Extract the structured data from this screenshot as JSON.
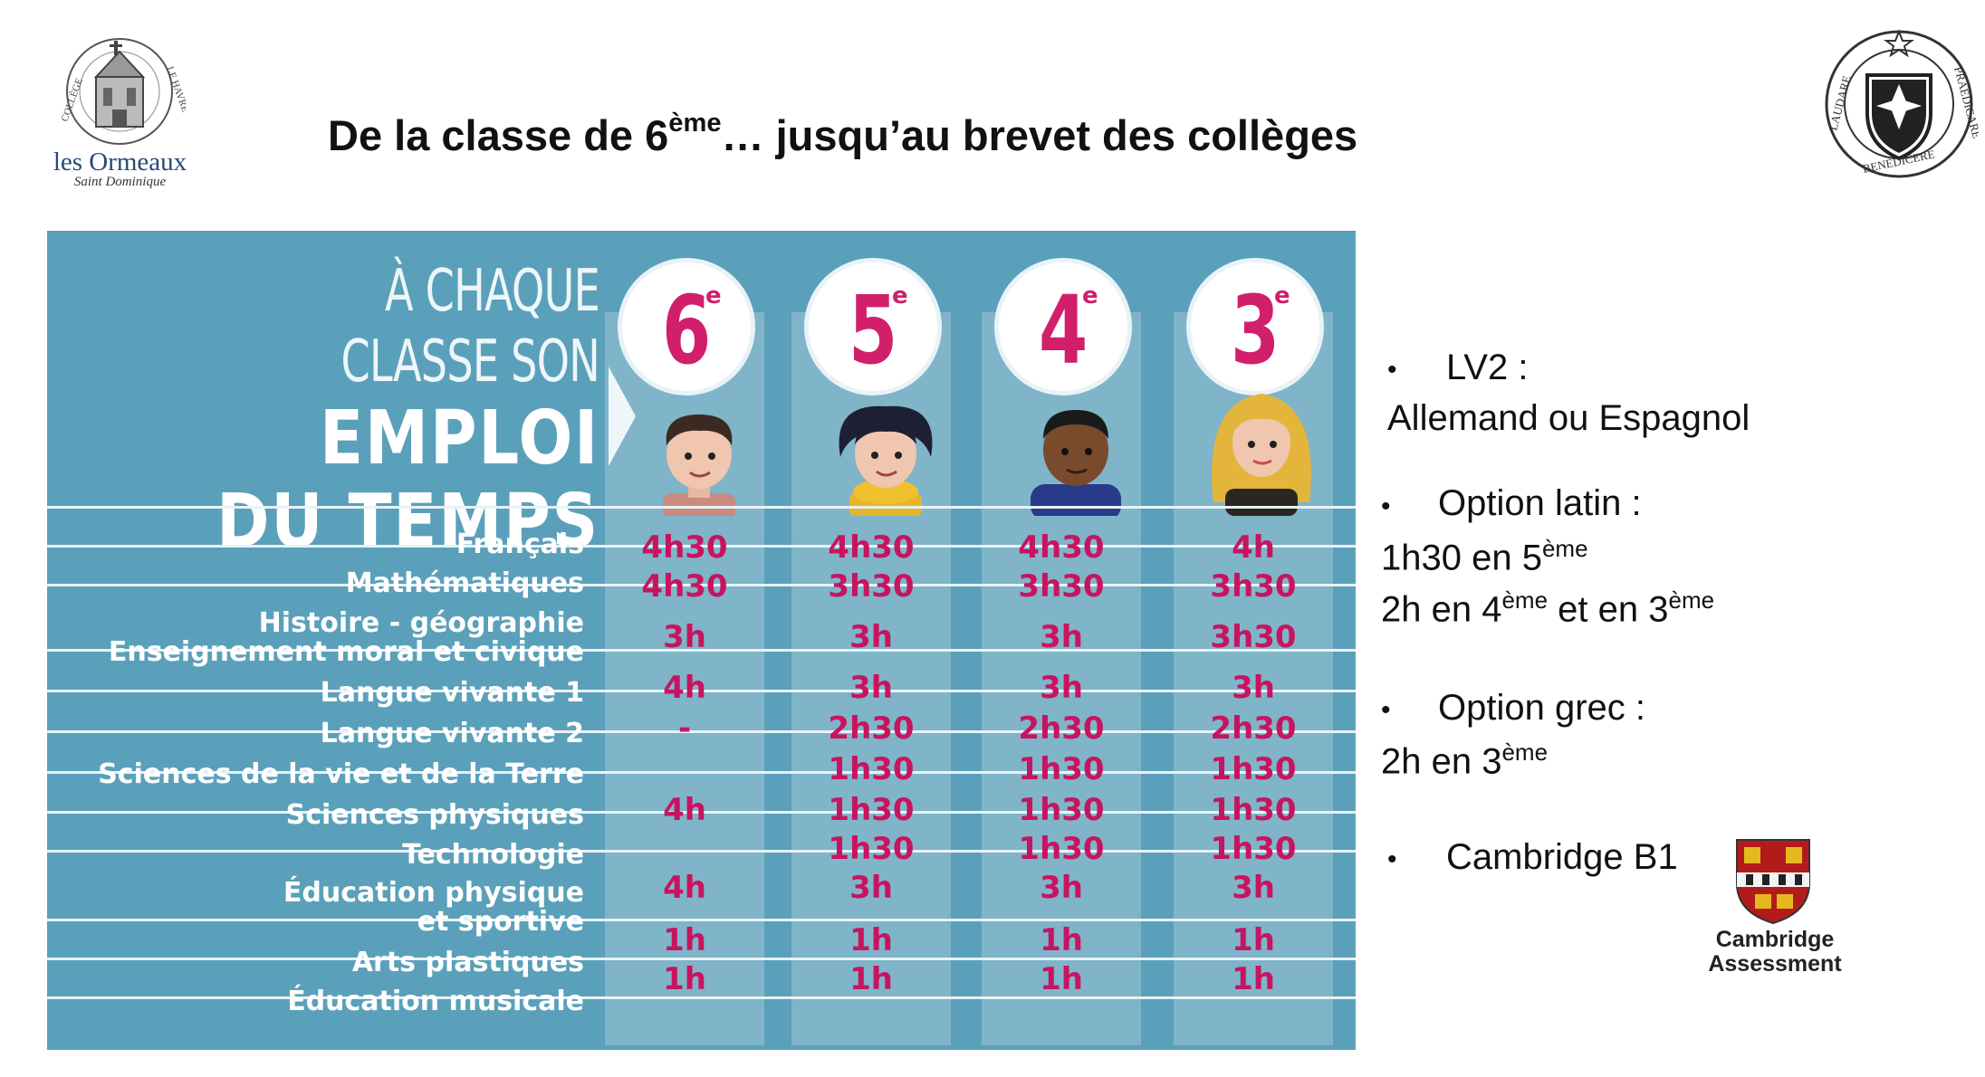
{
  "header": {
    "title_pre": "De la classe de 6",
    "title_sup": "ème",
    "title_post": "… jusqu’au brevet des collèges"
  },
  "logo_left": {
    "name": "les Ormeaux",
    "sub": "Saint Dominique",
    "ring_left": "COLLÈGE",
    "ring_right": "LE HAVRE"
  },
  "logo_right": {
    "ring_left": "LAUDARE",
    "ring_right": "PRAEDICARE",
    "ring_bottom": "BENEDICERE"
  },
  "schedule": {
    "slogan": [
      "À CHAQUE",
      "CLASSE SON",
      "EMPLOI",
      "DU TEMPS"
    ],
    "levels": [
      {
        "num": "6",
        "sup": "e"
      },
      {
        "num": "5",
        "sup": "e"
      },
      {
        "num": "4",
        "sup": "e"
      },
      {
        "num": "3",
        "sup": "e"
      }
    ],
    "subjects": [
      [
        "Français"
      ],
      [
        "Mathématiques"
      ],
      [
        "Histoire - géographie",
        "Enseignement moral et civique"
      ],
      [
        "Langue vivante 1"
      ],
      [
        "Langue vivante 2"
      ],
      [
        "Sciences de la vie et de la Terre"
      ],
      [
        "Sciences physiques"
      ],
      [
        "Technologie"
      ],
      [
        "Éducation physique",
        "et sportive"
      ],
      [
        "Arts plastiques"
      ],
      [
        "Éducation musicale"
      ]
    ],
    "hours": {
      "c6": [
        "4h30",
        "4h30",
        "3h",
        "4h",
        "-",
        "4h",
        "4h",
        "1h",
        "1h"
      ],
      "c5": [
        "4h30",
        "3h30",
        "3h",
        "3h",
        "2h30",
        "1h30",
        "1h30",
        "1h30",
        "3h",
        "1h",
        "1h"
      ],
      "c4": [
        "4h30",
        "3h30",
        "3h",
        "3h",
        "2h30",
        "1h30",
        "1h30",
        "1h30",
        "3h",
        "1h",
        "1h"
      ],
      "c3": [
        "4h",
        "3h30",
        "3h30",
        "3h",
        "2h30",
        "1h30",
        "1h30",
        "1h30",
        "3h",
        "1h",
        "1h"
      ]
    }
  },
  "info": {
    "lv2_title": "LV2 :",
    "lv2_value": "Allemand ou Espagnol",
    "latin_title": "Option latin :",
    "latin_line1_pre": "1h30 en 5",
    "latin_line1_sup": "ème",
    "latin_line2_a": "2h en 4",
    "latin_line2_sup1": "ème",
    "latin_line2_b": " et en 3",
    "latin_line2_sup2": "ème",
    "grec_title": "Option grec :",
    "grec_line_pre": "2h en 3",
    "grec_line_sup": "ème",
    "cambridge": "Cambridge B1",
    "cambridge_logo": [
      "Cambridge",
      "Assessment"
    ],
    "bullet_char": "•"
  },
  "colors": {
    "panel": "#5ba0ba",
    "column": "#7fb4c9",
    "accent": "#d11f6c"
  }
}
